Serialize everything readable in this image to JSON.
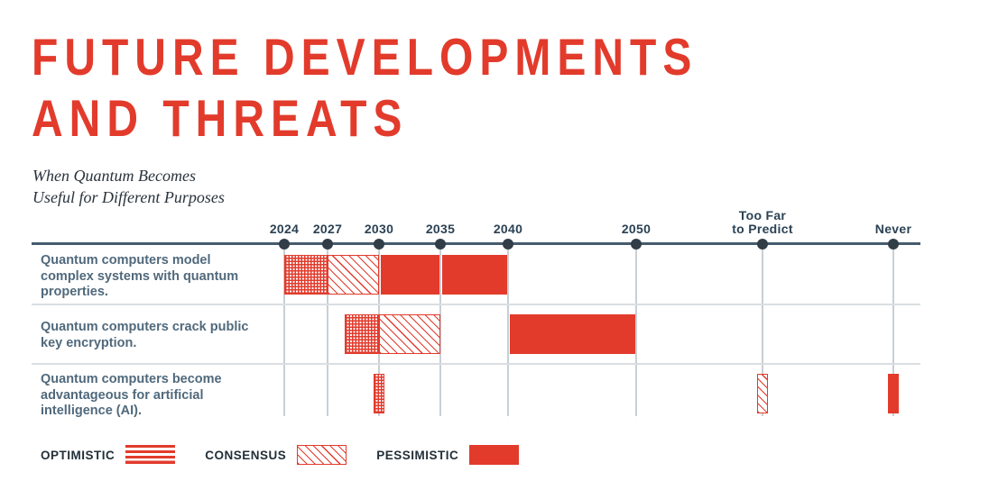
{
  "title": {
    "line1": "FUTURE DEVELOPMENTS",
    "line2": "AND THREATS"
  },
  "subtitle": "When Quantum Becomes\nUseful for Different Purposes",
  "colors": {
    "red": "#e23b2c",
    "axis": "#465b6d",
    "dot": "#313d47",
    "gridline": "#c8cfd5",
    "separator": "#dadee2",
    "tick_label": "#2b4254",
    "row_label": "#50697c",
    "legend_label": "#232f38",
    "subtitle_text": "#2a333c"
  },
  "legend": {
    "items": [
      {
        "label": "OPTIMISTIC",
        "style": "optimistic"
      },
      {
        "label": "CONSENSUS",
        "style": "consensus"
      },
      {
        "label": "PESSIMISTIC",
        "style": "pessimistic"
      }
    ]
  },
  "chart_data": {
    "type": "timeline-gantt",
    "title": "Future Developments and Threats",
    "subtitle": "When Quantum Becomes Useful for Different Purposes",
    "legend_position": "bottom-left",
    "grid": "vertical-only",
    "axis_ticks": [
      {
        "id": "2024",
        "label": "2024"
      },
      {
        "id": "2027",
        "label": "2027"
      },
      {
        "id": "2030",
        "label": "2030"
      },
      {
        "id": "2035",
        "label": "2035"
      },
      {
        "id": "2040",
        "label": "2040"
      },
      {
        "id": "2050",
        "label": "2050"
      },
      {
        "id": "too_far",
        "label": "Too Far\nto Predict"
      },
      {
        "id": "never",
        "label": "Never"
      }
    ],
    "rows": [
      {
        "label": "Quantum computers model complex systems with quantum properties.",
        "bars": [
          {
            "style": "optimistic",
            "from": "2024",
            "to": "2027"
          },
          {
            "style": "consensus",
            "from": "2027",
            "to": "2030"
          },
          {
            "style": "pessimistic",
            "from": "2030",
            "to": "2035"
          },
          {
            "style": "pessimistic",
            "from": "2035",
            "to": "2040"
          }
        ]
      },
      {
        "label": "Quantum computers crack public key encryption.",
        "bars": [
          {
            "style": "optimistic",
            "from": "2028",
            "to": "2030"
          },
          {
            "style": "consensus",
            "from": "2030",
            "to": "2035"
          },
          {
            "style": "pessimistic",
            "from": "2040",
            "to": "2050"
          }
        ]
      },
      {
        "label": "Quantum computers become advantageous for artificial intelligence (AI).",
        "bars": [
          {
            "style": "optimistic",
            "at": "2030"
          },
          {
            "style": "consensus",
            "at": "too_far"
          },
          {
            "style": "pessimistic",
            "at": "never"
          }
        ]
      }
    ]
  }
}
